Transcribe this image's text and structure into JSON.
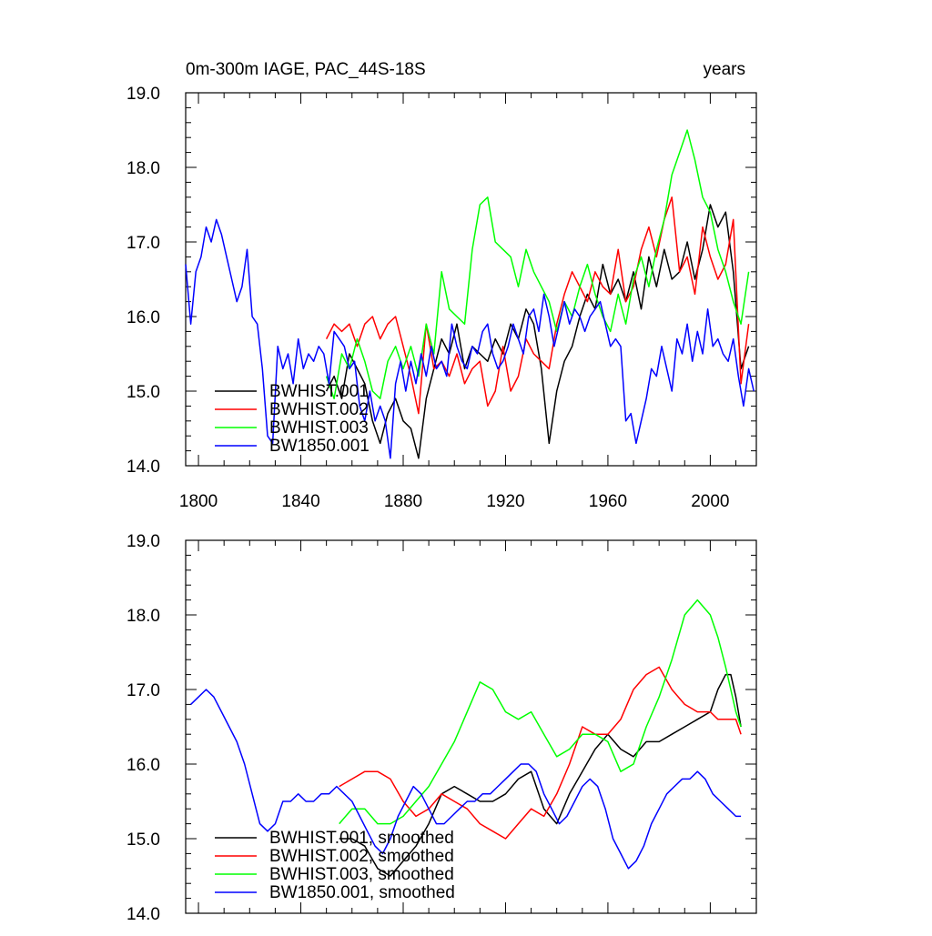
{
  "chart_data": [
    {
      "type": "line",
      "title_left": "0m-300m IAGE, PAC_44S-18S",
      "title_right": "years",
      "xlim": [
        1795,
        2018
      ],
      "ylim": [
        14.0,
        19.0
      ],
      "x_ticks": [
        1800,
        1840,
        1880,
        1920,
        1960,
        2000
      ],
      "y_ticks": [
        14.0,
        15.0,
        16.0,
        17.0,
        18.0,
        19.0
      ],
      "y_tick_labels": [
        "14.0",
        "15.0",
        "16.0",
        "17.0",
        "18.0",
        "19.0"
      ],
      "x_tick_labels": [
        "1800",
        "1840",
        "1880",
        "1920",
        "1960",
        "2000"
      ],
      "legend": [
        "BWHIST.001",
        "BWHIST.002",
        "BWHIST.003",
        "BW1850.001"
      ],
      "colors": [
        "#000000",
        "#ff0000",
        "#00ff00",
        "#0000ff"
      ],
      "series": [
        {
          "name": "BWHIST.001",
          "x": [
            1850,
            1853,
            1856,
            1859,
            1862,
            1865,
            1868,
            1871,
            1874,
            1877,
            1880,
            1883,
            1886,
            1889,
            1892,
            1895,
            1898,
            1901,
            1904,
            1907,
            1910,
            1913,
            1916,
            1919,
            1922,
            1925,
            1928,
            1931,
            1934,
            1937,
            1940,
            1943,
            1946,
            1949,
            1952,
            1955,
            1958,
            1961,
            1964,
            1967,
            1970,
            1973,
            1976,
            1979,
            1982,
            1985,
            1988,
            1991,
            1994,
            1997,
            2000,
            2003,
            2006,
            2009,
            2012,
            2015
          ],
          "y": [
            15.0,
            15.2,
            14.9,
            15.5,
            15.3,
            15.1,
            14.6,
            14.3,
            14.7,
            14.9,
            14.6,
            14.5,
            14.1,
            14.9,
            15.3,
            15.7,
            15.5,
            15.9,
            15.3,
            15.6,
            15.5,
            15.4,
            15.7,
            15.5,
            15.9,
            15.7,
            16.1,
            15.9,
            15.3,
            14.3,
            15.0,
            15.4,
            15.6,
            16.0,
            16.3,
            16.1,
            16.7,
            16.3,
            16.5,
            16.2,
            16.6,
            16.1,
            16.8,
            16.4,
            16.9,
            16.5,
            16.6,
            17.0,
            16.5,
            16.9,
            17.5,
            17.2,
            17.4,
            16.6,
            15.3,
            15.6
          ]
        },
        {
          "name": "BWHIST.002",
          "x": [
            1850,
            1853,
            1856,
            1859,
            1862,
            1865,
            1868,
            1871,
            1874,
            1877,
            1880,
            1883,
            1886,
            1889,
            1892,
            1895,
            1898,
            1901,
            1904,
            1907,
            1910,
            1913,
            1916,
            1919,
            1922,
            1925,
            1928,
            1931,
            1934,
            1937,
            1940,
            1943,
            1946,
            1949,
            1952,
            1955,
            1958,
            1961,
            1964,
            1967,
            1970,
            1973,
            1976,
            1979,
            1982,
            1985,
            1988,
            1991,
            1994,
            1997,
            2000,
            2003,
            2006,
            2009,
            2012,
            2015
          ],
          "y": [
            15.7,
            15.9,
            15.8,
            15.9,
            15.6,
            15.9,
            16.0,
            15.7,
            15.9,
            16.0,
            15.6,
            15.2,
            14.7,
            15.9,
            15.3,
            15.4,
            15.2,
            15.5,
            15.1,
            15.3,
            15.4,
            14.8,
            15.0,
            15.6,
            15.0,
            15.2,
            15.7,
            15.5,
            15.4,
            15.3,
            15.9,
            16.3,
            16.6,
            16.4,
            16.2,
            16.6,
            16.4,
            16.3,
            16.9,
            16.2,
            16.4,
            16.9,
            17.2,
            16.8,
            17.3,
            17.6,
            16.6,
            16.8,
            16.3,
            17.2,
            16.8,
            16.5,
            16.7,
            17.3,
            15.1,
            15.9
          ]
        },
        {
          "name": "BWHIST.003",
          "x": [
            1850,
            1853,
            1856,
            1859,
            1862,
            1865,
            1868,
            1871,
            1874,
            1877,
            1880,
            1883,
            1886,
            1889,
            1892,
            1895,
            1898,
            1901,
            1904,
            1907,
            1910,
            1913,
            1916,
            1919,
            1922,
            1925,
            1928,
            1931,
            1934,
            1937,
            1940,
            1943,
            1946,
            1949,
            1952,
            1955,
            1958,
            1961,
            1964,
            1967,
            1970,
            1973,
            1976,
            1979,
            1982,
            1985,
            1988,
            1991,
            1994,
            1997,
            2000,
            2003,
            2006,
            2009,
            2012,
            2015
          ],
          "y": [
            15.2,
            14.9,
            15.5,
            15.3,
            15.7,
            15.4,
            15.0,
            14.9,
            15.4,
            15.6,
            15.3,
            15.6,
            15.2,
            15.9,
            15.5,
            16.6,
            16.1,
            16.0,
            15.9,
            16.9,
            17.5,
            17.6,
            17.0,
            16.9,
            16.8,
            16.4,
            16.9,
            16.6,
            16.4,
            16.2,
            15.8,
            16.2,
            16.0,
            16.4,
            16.7,
            16.3,
            16.0,
            15.8,
            16.3,
            15.9,
            16.5,
            16.8,
            16.4,
            16.9,
            17.3,
            17.9,
            18.2,
            18.5,
            18.1,
            17.6,
            17.4,
            16.9,
            16.6,
            16.2,
            15.9,
            16.6
          ]
        },
        {
          "name": "BW1850.001",
          "x": [
            1795,
            1797,
            1799,
            1801,
            1803,
            1805,
            1807,
            1809,
            1811,
            1813,
            1815,
            1817,
            1819,
            1821,
            1823,
            1825,
            1827,
            1829,
            1831,
            1833,
            1835,
            1837,
            1839,
            1841,
            1843,
            1845,
            1847,
            1849,
            1851,
            1853,
            1855,
            1857,
            1859,
            1861,
            1863,
            1865,
            1867,
            1869,
            1871,
            1873,
            1875,
            1877,
            1879,
            1881,
            1883,
            1885,
            1887,
            1889,
            1891,
            1893,
            1895,
            1897,
            1899,
            1901,
            1903,
            1905,
            1907,
            1909,
            1911,
            1913,
            1915,
            1917,
            1919,
            1921,
            1923,
            1925,
            1927,
            1929,
            1931,
            1933,
            1935,
            1937,
            1939,
            1941,
            1943,
            1945,
            1947,
            1949,
            1951,
            1953,
            1955,
            1957,
            1959,
            1961,
            1963,
            1965,
            1967,
            1969,
            1971,
            1973,
            1975,
            1977,
            1979,
            1981,
            1983,
            1985,
            1987,
            1989,
            1991,
            1993,
            1995,
            1997,
            1999,
            2001,
            2003,
            2005,
            2007,
            2009,
            2011,
            2013,
            2015,
            2017
          ],
          "y": [
            16.7,
            15.9,
            16.6,
            16.8,
            17.2,
            17.0,
            17.3,
            17.1,
            16.8,
            16.5,
            16.2,
            16.4,
            16.9,
            16.0,
            15.9,
            15.3,
            14.4,
            14.3,
            15.6,
            15.3,
            15.5,
            15.1,
            15.7,
            15.3,
            15.5,
            15.4,
            15.6,
            15.5,
            15.1,
            15.8,
            15.7,
            15.6,
            15.3,
            15.4,
            14.8,
            14.6,
            15.0,
            14.6,
            14.8,
            14.6,
            14.1,
            15.1,
            15.4,
            15.0,
            15.4,
            15.1,
            15.5,
            15.2,
            15.6,
            15.3,
            15.4,
            15.2,
            15.9,
            15.6,
            15.4,
            15.3,
            15.6,
            15.5,
            15.8,
            15.9,
            15.5,
            15.3,
            15.4,
            15.6,
            15.9,
            15.7,
            15.5,
            16.0,
            16.1,
            15.8,
            16.3,
            16.0,
            15.6,
            15.9,
            16.2,
            15.9,
            16.1,
            16.0,
            15.8,
            16.0,
            16.1,
            16.2,
            15.9,
            15.6,
            15.7,
            15.6,
            14.6,
            14.7,
            14.3,
            14.6,
            14.9,
            15.3,
            15.2,
            15.6,
            15.3,
            15.0,
            15.7,
            15.5,
            15.9,
            15.4,
            15.8,
            15.5,
            16.1,
            15.6,
            15.7,
            15.5,
            15.4,
            15.7,
            15.2,
            14.8,
            15.3,
            15.0
          ]
        }
      ]
    },
    {
      "type": "line",
      "xlim": [
        1795,
        2018
      ],
      "ylim": [
        14.0,
        19.0
      ],
      "y_ticks": [
        14.0,
        15.0,
        16.0,
        17.0,
        18.0,
        19.0
      ],
      "y_tick_labels": [
        "14.0",
        "15.0",
        "16.0",
        "17.0",
        "18.0",
        "19.0"
      ],
      "x_ticks": [
        1800,
        1840,
        1880,
        1920,
        1960,
        2000
      ],
      "legend": [
        "BWHIST.001, smoothed",
        "BWHIST.002, smoothed",
        "BWHIST.003, smoothed",
        "BW1850.001, smoothed"
      ],
      "colors": [
        "#000000",
        "#ff0000",
        "#00ff00",
        "#0000ff"
      ],
      "series": [
        {
          "name": "BWHIST.001, smoothed",
          "x": [
            1855,
            1860,
            1865,
            1870,
            1875,
            1880,
            1885,
            1890,
            1895,
            1900,
            1905,
            1910,
            1915,
            1920,
            1925,
            1930,
            1935,
            1940,
            1945,
            1950,
            1955,
            1960,
            1965,
            1970,
            1975,
            1980,
            1985,
            1990,
            1995,
            2000,
            2003,
            2006,
            2008,
            2010,
            2012
          ],
          "y": [
            15.0,
            15.0,
            14.9,
            14.6,
            14.5,
            14.7,
            14.9,
            15.2,
            15.6,
            15.7,
            15.6,
            15.5,
            15.5,
            15.6,
            15.8,
            15.9,
            15.4,
            15.2,
            15.6,
            15.9,
            16.2,
            16.4,
            16.2,
            16.1,
            16.3,
            16.3,
            16.4,
            16.5,
            16.6,
            16.7,
            17.0,
            17.2,
            17.2,
            16.9,
            16.5
          ]
        },
        {
          "name": "BWHIST.002, smoothed",
          "x": [
            1855,
            1860,
            1865,
            1870,
            1875,
            1880,
            1885,
            1890,
            1895,
            1900,
            1905,
            1910,
            1915,
            1920,
            1925,
            1930,
            1935,
            1940,
            1945,
            1950,
            1955,
            1960,
            1965,
            1970,
            1975,
            1980,
            1985,
            1990,
            1995,
            2000,
            2003,
            2006,
            2008,
            2010,
            2012
          ],
          "y": [
            15.7,
            15.8,
            15.9,
            15.9,
            15.8,
            15.5,
            15.3,
            15.4,
            15.6,
            15.5,
            15.4,
            15.2,
            15.1,
            15.0,
            15.2,
            15.4,
            15.3,
            15.6,
            16.0,
            16.5,
            16.4,
            16.4,
            16.6,
            17.0,
            17.2,
            17.3,
            17.0,
            16.8,
            16.7,
            16.7,
            16.6,
            16.6,
            16.6,
            16.6,
            16.4
          ]
        },
        {
          "name": "BWHIST.003, smoothed",
          "x": [
            1855,
            1860,
            1865,
            1870,
            1875,
            1880,
            1885,
            1890,
            1895,
            1900,
            1905,
            1910,
            1915,
            1920,
            1925,
            1930,
            1935,
            1940,
            1945,
            1950,
            1955,
            1960,
            1965,
            1970,
            1975,
            1980,
            1985,
            1990,
            1995,
            2000,
            2003,
            2006,
            2008,
            2010,
            2012
          ],
          "y": [
            15.2,
            15.4,
            15.4,
            15.2,
            15.2,
            15.3,
            15.5,
            15.7,
            16.0,
            16.3,
            16.7,
            17.1,
            17.0,
            16.7,
            16.6,
            16.7,
            16.4,
            16.1,
            16.2,
            16.4,
            16.4,
            16.3,
            15.9,
            16.0,
            16.5,
            16.9,
            17.4,
            18.0,
            18.2,
            18.0,
            17.7,
            17.3,
            17.0,
            16.7,
            16.5
          ]
        },
        {
          "name": "BW1850.001, smoothed",
          "x": [
            1797,
            1800,
            1803,
            1806,
            1809,
            1812,
            1815,
            1818,
            1821,
            1824,
            1827,
            1830,
            1833,
            1836,
            1839,
            1842,
            1845,
            1848,
            1851,
            1854,
            1857,
            1860,
            1863,
            1866,
            1869,
            1872,
            1875,
            1878,
            1881,
            1884,
            1887,
            1890,
            1893,
            1896,
            1899,
            1902,
            1905,
            1908,
            1911,
            1914,
            1917,
            1920,
            1923,
            1926,
            1929,
            1932,
            1935,
            1938,
            1941,
            1944,
            1947,
            1950,
            1953,
            1956,
            1959,
            1962,
            1965,
            1968,
            1971,
            1974,
            1977,
            1980,
            1983,
            1986,
            1989,
            1992,
            1995,
            1998,
            2001,
            2004,
            2007,
            2010,
            2012
          ],
          "y": [
            16.8,
            16.9,
            17.0,
            16.9,
            16.7,
            16.5,
            16.3,
            16.0,
            15.6,
            15.2,
            15.1,
            15.2,
            15.5,
            15.5,
            15.6,
            15.5,
            15.5,
            15.6,
            15.6,
            15.7,
            15.6,
            15.5,
            15.3,
            15.1,
            14.9,
            14.8,
            15.0,
            15.3,
            15.5,
            15.7,
            15.6,
            15.4,
            15.2,
            15.2,
            15.3,
            15.4,
            15.5,
            15.5,
            15.6,
            15.6,
            15.7,
            15.8,
            15.9,
            16.0,
            16.0,
            15.9,
            15.6,
            15.4,
            15.2,
            15.3,
            15.5,
            15.7,
            15.8,
            15.7,
            15.4,
            15.0,
            14.8,
            14.6,
            14.7,
            14.9,
            15.2,
            15.4,
            15.6,
            15.7,
            15.8,
            15.8,
            15.9,
            15.8,
            15.6,
            15.5,
            15.4,
            15.3,
            15.3
          ]
        }
      ]
    }
  ]
}
